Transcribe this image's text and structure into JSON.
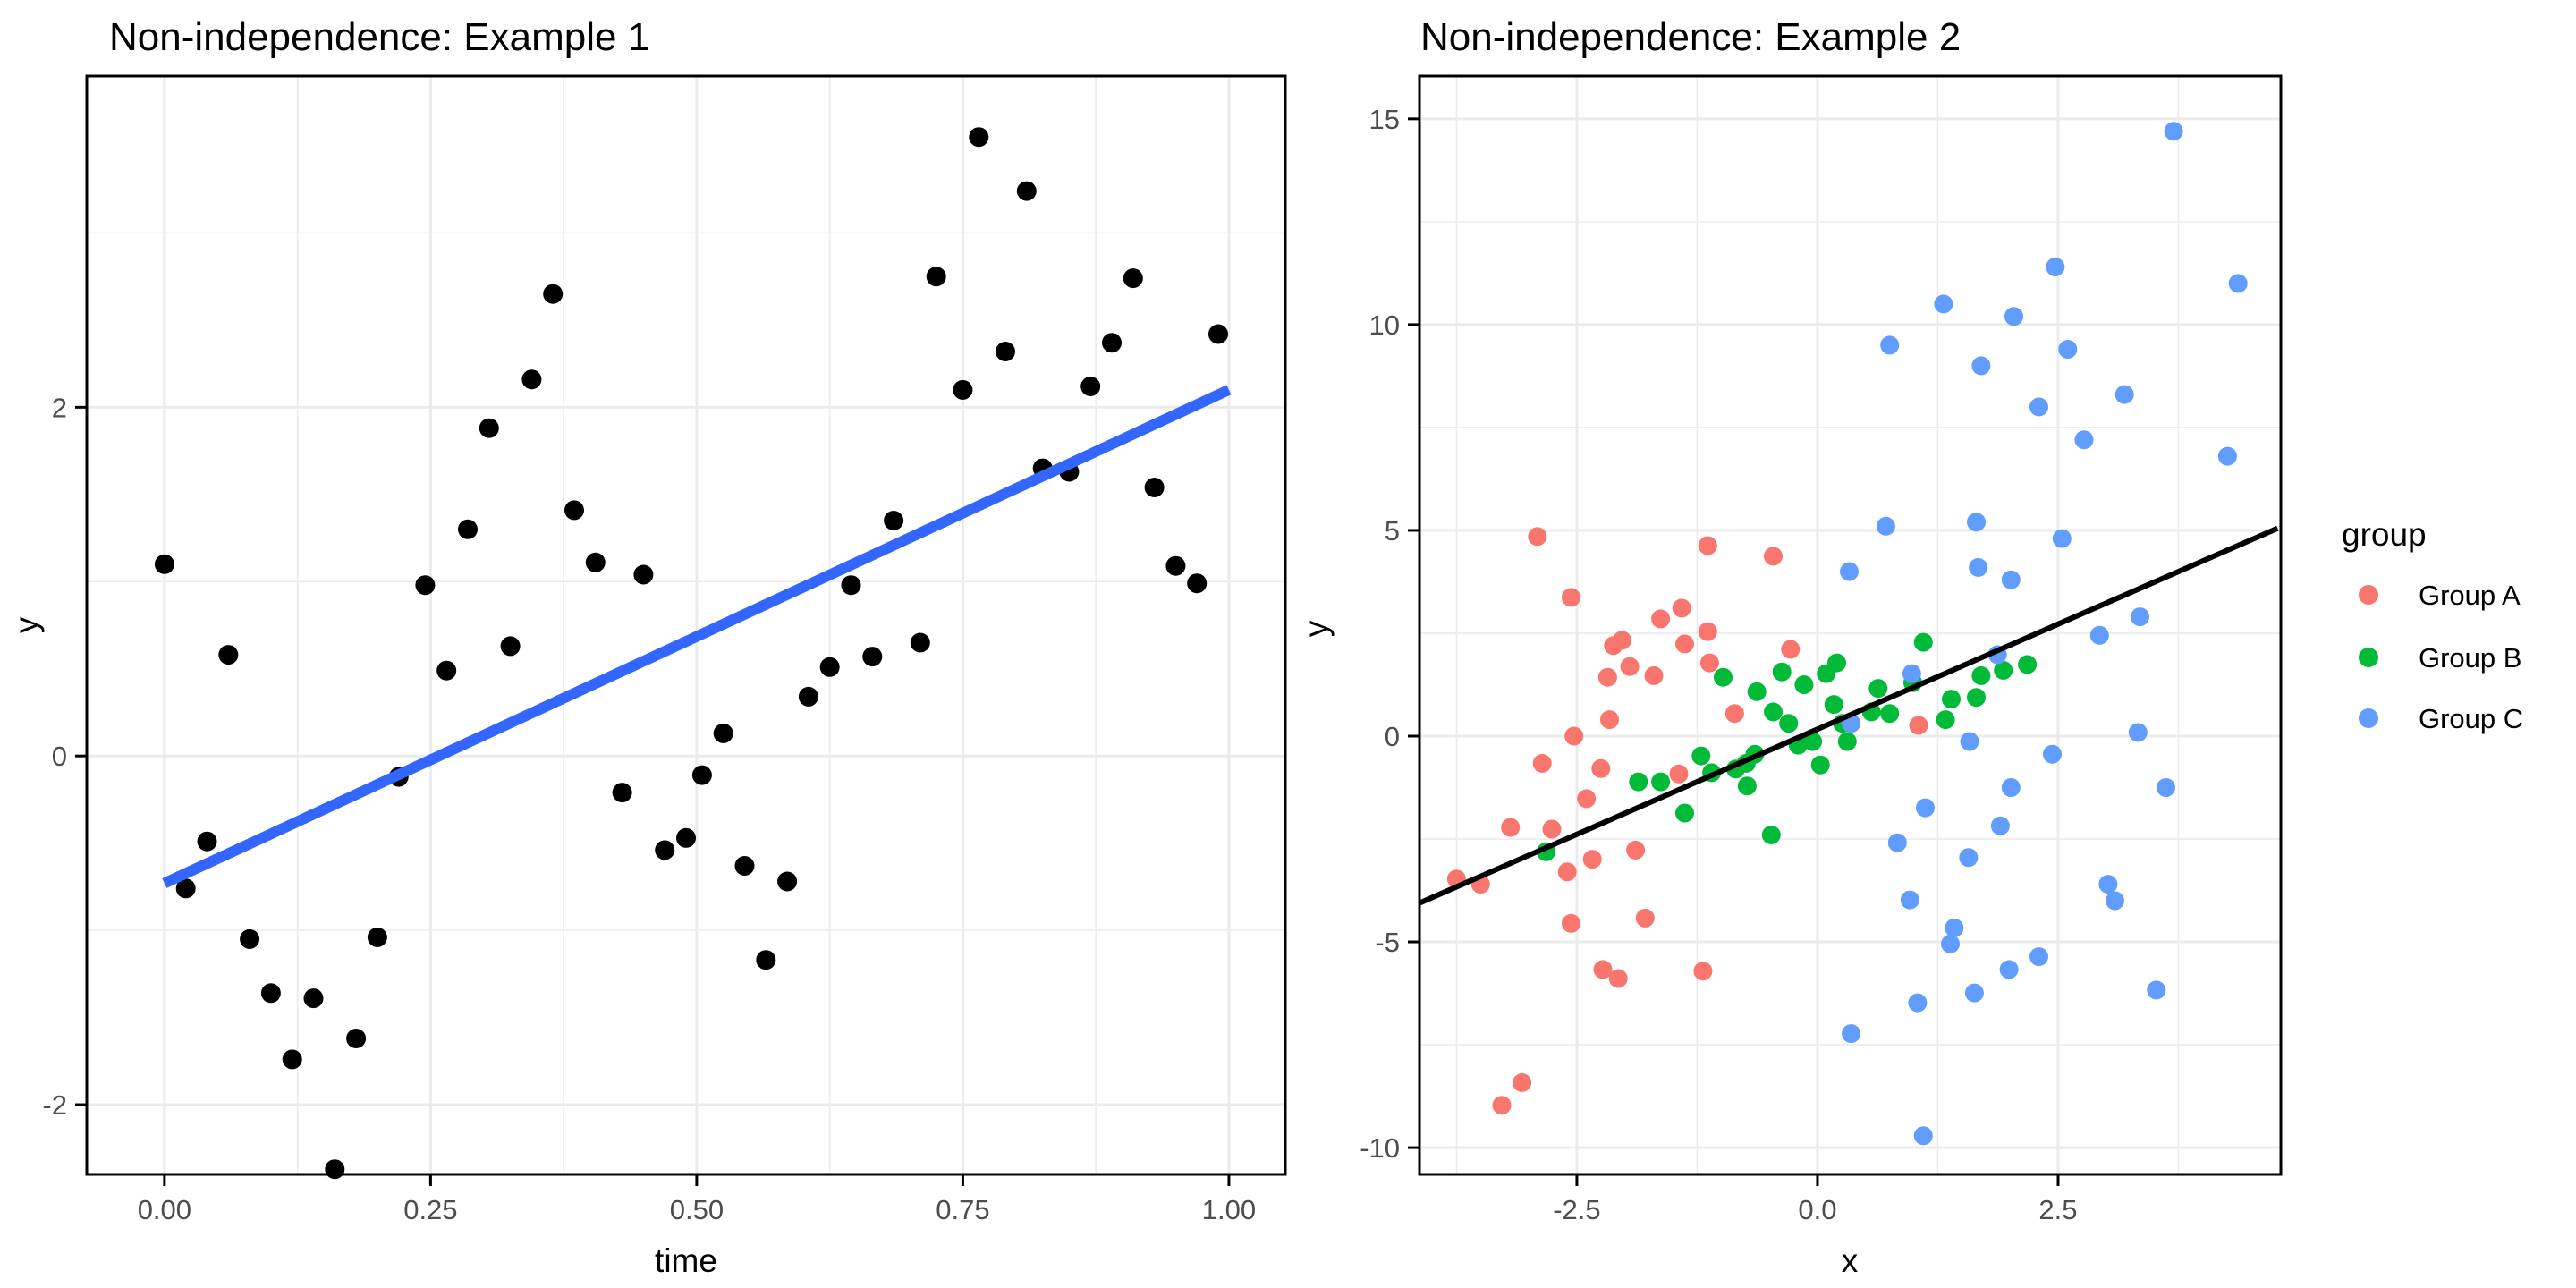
{
  "figure": {
    "background": "#FFFFFF",
    "panel_background": "#FFFFFF",
    "panel_border_color": "#000000",
    "grid_major_color": "#EBEBEB",
    "grid_minor_color": "#F2F2F2",
    "tick_color": "#000000",
    "tick_label_color": "#4D4D4D"
  },
  "chart_data": [
    {
      "type": "scatter",
      "title": "Non-independence: Example 1",
      "xlabel": "time",
      "ylabel": "y",
      "xlim": [
        -0.073,
        1.053
      ],
      "ylim": [
        -2.4,
        3.9
      ],
      "x_ticks": [
        0.0,
        0.25,
        0.5,
        0.75,
        1.0
      ],
      "x_tick_labels": [
        "0.00",
        "0.25",
        "0.50",
        "0.75",
        "1.00"
      ],
      "x_minor_ticks": [
        0.125,
        0.375,
        0.625,
        0.875
      ],
      "y_ticks": [
        -2,
        0,
        2
      ],
      "y_tick_labels": [
        "-2",
        "0",
        "2"
      ],
      "y_minor_ticks": [
        -1,
        1,
        3
      ],
      "grid": true,
      "legend_position": "none",
      "point_color": "#000000",
      "point_radius": 11,
      "trend_line": {
        "color": "#3366FF",
        "width": 12,
        "x1": 0.0,
        "y1": -0.73,
        "x2": 1.0,
        "y2": 2.1
      },
      "points": [
        [
          0.0,
          1.1
        ],
        [
          0.02,
          -0.76
        ],
        [
          0.04,
          -0.49
        ],
        [
          0.06,
          0.58
        ],
        [
          0.08,
          -1.05
        ],
        [
          0.1,
          -1.36
        ],
        [
          0.12,
          -1.74
        ],
        [
          0.14,
          -1.39
        ],
        [
          0.16,
          -2.37
        ],
        [
          0.18,
          -1.62
        ],
        [
          0.2,
          -1.04
        ],
        [
          0.22,
          -0.12
        ],
        [
          0.245,
          0.98
        ],
        [
          0.265,
          0.49
        ],
        [
          0.285,
          1.3
        ],
        [
          0.305,
          1.88
        ],
        [
          0.325,
          0.63
        ],
        [
          0.345,
          2.16
        ],
        [
          0.365,
          2.65
        ],
        [
          0.385,
          1.41
        ],
        [
          0.405,
          1.11
        ],
        [
          0.43,
          -0.21
        ],
        [
          0.45,
          1.04
        ],
        [
          0.47,
          -0.54
        ],
        [
          0.49,
          -0.47
        ],
        [
          0.505,
          -0.11
        ],
        [
          0.525,
          0.13
        ],
        [
          0.545,
          -0.63
        ],
        [
          0.565,
          -1.17
        ],
        [
          0.585,
          -0.72
        ],
        [
          0.605,
          0.34
        ],
        [
          0.625,
          0.51
        ],
        [
          0.645,
          0.98
        ],
        [
          0.665,
          0.57
        ],
        [
          0.685,
          1.35
        ],
        [
          0.71,
          0.65
        ],
        [
          0.725,
          2.75
        ],
        [
          0.75,
          2.1
        ],
        [
          0.765,
          3.55
        ],
        [
          0.79,
          2.32
        ],
        [
          0.81,
          3.24
        ],
        [
          0.825,
          1.65
        ],
        [
          0.85,
          1.63
        ],
        [
          0.87,
          2.12
        ],
        [
          0.89,
          2.37
        ],
        [
          0.91,
          2.74
        ],
        [
          0.93,
          1.54
        ],
        [
          0.95,
          1.09
        ],
        [
          0.97,
          0.99
        ],
        [
          0.99,
          2.42
        ]
      ]
    },
    {
      "type": "scatter",
      "title": "Non-independence: Example 2",
      "xlabel": "x",
      "ylabel": "y",
      "xlim": [
        -4.135,
        4.814
      ],
      "ylim": [
        -10.65,
        16.04
      ],
      "x_ticks": [
        -2.5,
        0.0,
        2.5
      ],
      "x_tick_labels": [
        "-2.5",
        "0.0",
        "2.5"
      ],
      "x_minor_ticks": [
        -3.75,
        -1.25,
        1.25,
        3.75
      ],
      "y_ticks": [
        15,
        10,
        5,
        0,
        -5,
        -10
      ],
      "y_tick_labels": [
        "15",
        "10",
        "5",
        "0",
        "-5",
        "-10"
      ],
      "y_minor_ticks": [
        12.5,
        7.5,
        2.5,
        -2.5,
        -7.5
      ],
      "grid": true,
      "point_radius": 10.5,
      "trend_line": {
        "color": "#000000",
        "width": 6,
        "x1": -4.13,
        "y1": -4.05,
        "x2": 4.78,
        "y2": 5.05
      },
      "legend": {
        "title": "group",
        "position": "right"
      },
      "series": [
        {
          "name": "Group A",
          "color": "#F8766D",
          "points": [
            [
              -2.91,
              4.85
            ],
            [
              -1.14,
              4.63
            ],
            [
              -0.46,
              4.37
            ],
            [
              -2.56,
              3.37
            ],
            [
              -1.63,
              2.85
            ],
            [
              -1.41,
              3.11
            ],
            [
              -1.14,
              2.54
            ],
            [
              -2.12,
              2.2
            ],
            [
              -2.03,
              2.33
            ],
            [
              -1.38,
              2.24
            ],
            [
              -1.12,
              1.78
            ],
            [
              -1.95,
              1.69
            ],
            [
              -2.18,
              1.43
            ],
            [
              -1.7,
              1.47
            ],
            [
              -0.28,
              2.11
            ],
            [
              -0.86,
              0.55
            ],
            [
              -2.16,
              0.4
            ],
            [
              -2.53,
              0.0
            ],
            [
              -2.86,
              -0.66
            ],
            [
              -2.25,
              -0.79
            ],
            [
              -1.44,
              -0.92
            ],
            [
              -2.4,
              -1.52
            ],
            [
              -3.19,
              -2.22
            ],
            [
              -2.76,
              -2.26
            ],
            [
              -3.75,
              -3.47
            ],
            [
              -3.5,
              -3.6
            ],
            [
              -2.6,
              -3.3
            ],
            [
              -2.34,
              -2.99
            ],
            [
              -1.89,
              -2.77
            ],
            [
              -1.79,
              -4.42
            ],
            [
              -2.56,
              -4.55
            ],
            [
              -2.23,
              -5.67
            ],
            [
              -2.07,
              -5.89
            ],
            [
              -1.19,
              -5.71
            ],
            [
              -3.07,
              -8.42
            ],
            [
              -3.28,
              -8.97
            ],
            [
              1.05,
              0.26
            ]
          ]
        },
        {
          "name": "Group B",
          "color": "#00BA38",
          "points": [
            [
              -2.82,
              -2.81
            ],
            [
              -1.86,
              -1.11
            ],
            [
              -1.63,
              -1.11
            ],
            [
              -1.38,
              -1.87
            ],
            [
              -1.21,
              -0.48
            ],
            [
              -1.1,
              -0.89
            ],
            [
              -0.85,
              -0.8
            ],
            [
              -0.74,
              -0.66
            ],
            [
              -0.65,
              -0.44
            ],
            [
              -0.73,
              -1.21
            ],
            [
              -0.46,
              0.59
            ],
            [
              -0.3,
              0.31
            ],
            [
              -0.2,
              -0.22
            ],
            [
              -0.05,
              -0.13
            ],
            [
              0.03,
              -0.7
            ],
            [
              0.17,
              0.77
            ],
            [
              0.26,
              0.31
            ],
            [
              0.31,
              -0.13
            ],
            [
              -0.48,
              -2.4
            ],
            [
              0.2,
              1.78
            ],
            [
              1.1,
              2.28
            ],
            [
              0.63,
              1.16
            ],
            [
              0.99,
              1.3
            ],
            [
              0.56,
              0.59
            ],
            [
              0.75,
              0.55
            ],
            [
              1.39,
              0.9
            ],
            [
              1.65,
              0.94
            ],
            [
              1.93,
              1.6
            ],
            [
              2.18,
              1.74
            ],
            [
              1.7,
              1.47
            ],
            [
              1.33,
              0.4
            ],
            [
              -0.98,
              1.43
            ],
            [
              -0.63,
              1.08
            ],
            [
              -0.37,
              1.56
            ],
            [
              -0.14,
              1.25
            ],
            [
              0.09,
              1.52
            ]
          ]
        },
        {
          "name": "Group C",
          "color": "#619CFF",
          "points": [
            [
              3.7,
              14.7
            ],
            [
              2.47,
              11.4
            ],
            [
              4.37,
              11.0
            ],
            [
              1.31,
              10.5
            ],
            [
              2.04,
              10.2
            ],
            [
              0.75,
              9.5
            ],
            [
              1.7,
              9.0
            ],
            [
              2.6,
              9.4
            ],
            [
              3.19,
              8.3
            ],
            [
              2.3,
              8.0
            ],
            [
              2.77,
              7.2
            ],
            [
              4.26,
              6.8
            ],
            [
              0.71,
              5.1
            ],
            [
              1.65,
              5.2
            ],
            [
              2.54,
              4.8
            ],
            [
              0.33,
              4.0
            ],
            [
              1.67,
              4.1
            ],
            [
              2.01,
              3.8
            ],
            [
              3.35,
              2.9
            ],
            [
              2.93,
              2.45
            ],
            [
              1.87,
              1.98
            ],
            [
              0.98,
              1.52
            ],
            [
              0.35,
              0.31
            ],
            [
              1.58,
              -0.13
            ],
            [
              3.33,
              0.09
            ],
            [
              2.44,
              -0.44
            ],
            [
              2.01,
              -1.25
            ],
            [
              3.62,
              -1.25
            ],
            [
              1.12,
              -1.74
            ],
            [
              1.9,
              -2.18
            ],
            [
              0.83,
              -2.59
            ],
            [
              1.57,
              -2.95
            ],
            [
              3.02,
              -3.6
            ],
            [
              3.09,
              -4.0
            ],
            [
              0.96,
              -3.98
            ],
            [
              1.42,
              -4.66
            ],
            [
              1.38,
              -5.05
            ],
            [
              2.3,
              -5.36
            ],
            [
              1.99,
              -5.67
            ],
            [
              1.63,
              -6.24
            ],
            [
              1.04,
              -6.48
            ],
            [
              3.52,
              -6.17
            ],
            [
              0.35,
              -7.23
            ],
            [
              1.1,
              -9.71
            ]
          ]
        }
      ]
    }
  ]
}
